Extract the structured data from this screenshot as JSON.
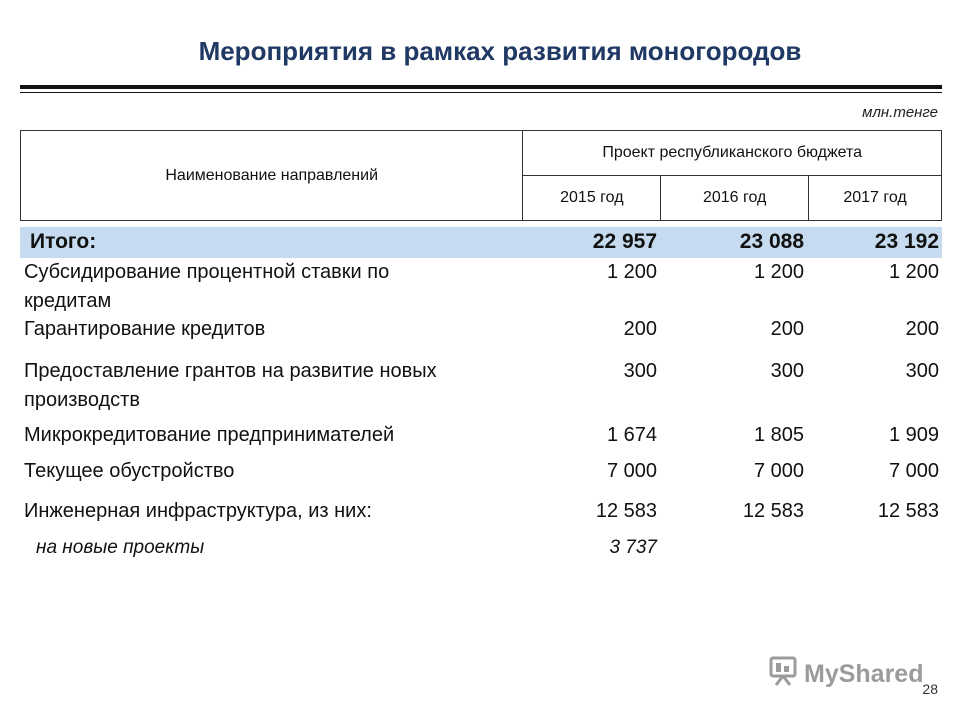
{
  "title": "Мероприятия в рамках развития моногородов",
  "unit": "млн.тенге",
  "table": {
    "name_header": "Наименование направлений",
    "budget_header": "Проект республиканского бюджета",
    "years": [
      "2015 год",
      "2016 год",
      "2017 год"
    ]
  },
  "totals": {
    "label": "Итого:",
    "values": [
      "22 957",
      "23 088",
      "23 192"
    ]
  },
  "rows": [
    {
      "label_lines": [
        "Субсидирование процентной ставки по",
        "кредитам"
      ],
      "values": [
        "1 200",
        "1 200",
        "1 200"
      ]
    },
    {
      "label_lines": [
        "Гарантирование кредитов"
      ],
      "values": [
        "200",
        "200",
        "200"
      ]
    },
    {
      "label_lines": [
        "Предоставление грантов на развитие новых",
        "производств"
      ],
      "values": [
        "300",
        "300",
        "300"
      ]
    },
    {
      "label_lines": [
        "Микрокредитование предпринимателей"
      ],
      "values": [
        "1 674",
        "1 805",
        "1 909"
      ]
    },
    {
      "label_lines": [
        "Текущее обустройство"
      ],
      "values": [
        "7 000",
        "7 000",
        "7 000"
      ]
    },
    {
      "label_lines": [
        "Инженерная инфраструктура, из них:"
      ],
      "values": [
        "12 583",
        "12 583",
        "12 583"
      ]
    },
    {
      "label_lines": [
        "на новые проекты"
      ],
      "values": [
        "3 737",
        "",
        ""
      ]
    }
  ],
  "watermark": "MyShared",
  "page_number": "28"
}
